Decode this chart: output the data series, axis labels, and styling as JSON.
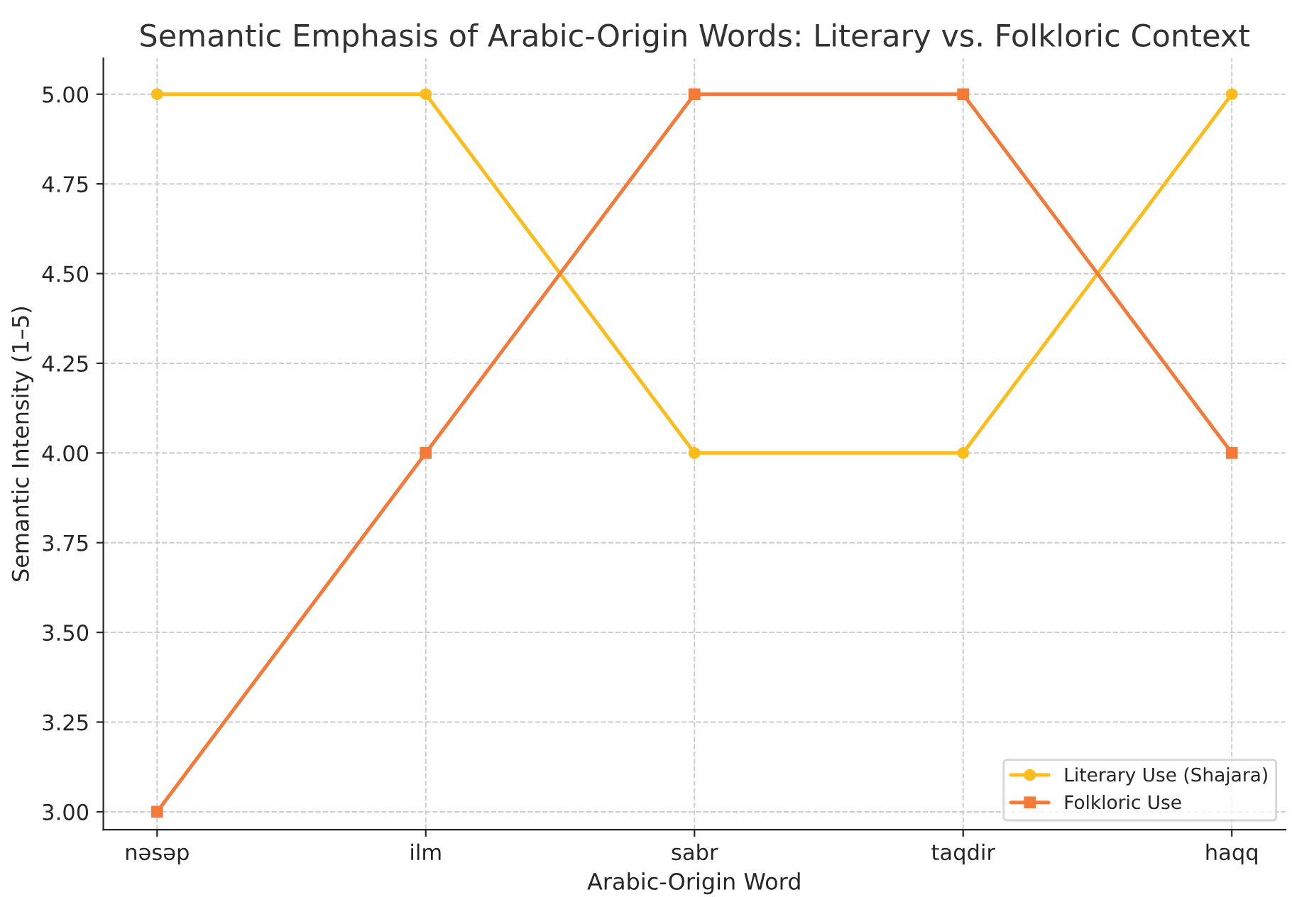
{
  "chart_data": {
    "type": "line",
    "title": "Semantic Emphasis of Arabic-Origin Words: Literary vs. Folkloric Context",
    "xlabel": "Arabic-Origin Word",
    "ylabel": "Semantic Intensity (1–5)",
    "categories": [
      "nəsəp",
      "ilm",
      "sabr",
      "taqdir",
      "haqq"
    ],
    "series": [
      {
        "name": "Literary Use (Shajara)",
        "color": "#fbbc1c",
        "marker": "circle",
        "values": [
          5,
          5,
          4,
          4,
          5
        ]
      },
      {
        "name": "Folkloric Use",
        "color": "#f47a3a",
        "marker": "square",
        "values": [
          3,
          4,
          5,
          5,
          4
        ]
      }
    ],
    "ylim": [
      2.95,
      5.1
    ],
    "yticks": [
      {
        "value": 3,
        "label": "3.00"
      },
      {
        "value": 3.25,
        "label": "3.25"
      },
      {
        "value": 3.5,
        "label": "3.50"
      },
      {
        "value": 3.75,
        "label": "3.75"
      },
      {
        "value": 4,
        "label": "4.00"
      },
      {
        "value": 4.25,
        "label": "4.25"
      },
      {
        "value": 4.5,
        "label": "4.50"
      },
      {
        "value": 4.75,
        "label": "4.75"
      },
      {
        "value": 5,
        "label": "5.00"
      }
    ],
    "grid": true,
    "legend": "bottom right",
    "line_style": "solid"
  }
}
